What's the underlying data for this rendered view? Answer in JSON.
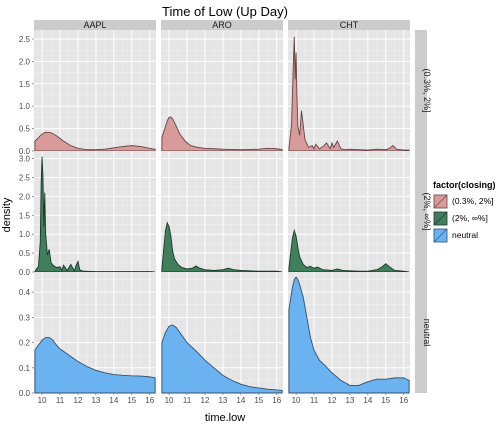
{
  "chart_data": {
    "type": "area",
    "title": "Time of Low (Up Day)",
    "xlabel": "time.low",
    "ylabel": "density",
    "x_ticks": [
      10,
      11,
      12,
      13,
      14,
      15,
      16
    ],
    "xlim": [
      9.55,
      16.35
    ],
    "columns": [
      "AAPL",
      "ARO",
      "CHT"
    ],
    "rows": [
      {
        "key": "r1",
        "label": "(0.3%, 2%]",
        "ylim": [
          0,
          2.7
        ],
        "y_ticks": [
          0,
          0.5,
          1.0,
          1.5,
          2.0,
          2.5
        ],
        "y_tick_labels": [
          "0.0",
          "0.5",
          "1.0",
          "1.5",
          "2.0",
          "2.5"
        ],
        "fill": "#d99a9a"
      },
      {
        "key": "r2",
        "label": "(2%, ∞%]",
        "ylim": [
          0,
          3.2
        ],
        "y_ticks": [
          0,
          0.5,
          1.0,
          1.5,
          2.0,
          2.5,
          3.0
        ],
        "y_tick_labels": [
          "0.0",
          "0.5",
          "1.0",
          "1.5",
          "2.0",
          "2.5",
          "3.0"
        ],
        "fill": "#3f7f5c"
      },
      {
        "key": "r3",
        "label": "neutral",
        "ylim": [
          0,
          0.48
        ],
        "y_ticks": [
          0,
          0.1,
          0.2,
          0.3,
          0.4
        ],
        "y_tick_labels": [
          "0.0",
          "0.1",
          "0.2",
          "0.3",
          "0.4"
        ],
        "fill": "#6bb2f0"
      }
    ],
    "legend": {
      "title": "factor(closing)",
      "position": "right",
      "entries": [
        {
          "label": "(0.3%, 2%]",
          "color": "#d99a9a"
        },
        {
          "label": "(2%, ∞%]",
          "color": "#3f7f5c"
        },
        {
          "label": "neutral",
          "color": "#6bb2f0"
        }
      ]
    },
    "grid": true,
    "panels": [
      {
        "row": "r1",
        "column": "AAPL",
        "x": [
          9.6,
          9.8,
          10.0,
          10.2,
          10.5,
          10.8,
          11.2,
          11.6,
          12.0,
          12.5,
          13.0,
          13.5,
          14.0,
          14.5,
          15.0,
          15.5,
          16.0,
          16.3
        ],
        "y": [
          0.22,
          0.3,
          0.38,
          0.42,
          0.41,
          0.34,
          0.22,
          0.12,
          0.06,
          0.03,
          0.03,
          0.04,
          0.07,
          0.1,
          0.12,
          0.1,
          0.06,
          0.04
        ]
      },
      {
        "row": "r1",
        "column": "ARO",
        "x": [
          9.6,
          9.8,
          9.9,
          10.0,
          10.1,
          10.2,
          10.4,
          10.6,
          10.9,
          11.2,
          11.6,
          12.0,
          12.5,
          13.0,
          14.0,
          15.0,
          15.5,
          16.0,
          16.3
        ],
        "y": [
          0.3,
          0.55,
          0.68,
          0.75,
          0.76,
          0.72,
          0.55,
          0.38,
          0.22,
          0.12,
          0.08,
          0.06,
          0.05,
          0.04,
          0.03,
          0.04,
          0.06,
          0.05,
          0.03
        ]
      },
      {
        "row": "r1",
        "column": "CHT",
        "x": [
          9.6,
          9.75,
          9.85,
          9.9,
          9.95,
          10.0,
          10.05,
          10.1,
          10.2,
          10.3,
          10.5,
          10.7,
          10.9,
          11.0,
          11.1,
          11.3,
          11.5,
          11.7,
          11.9,
          12.0,
          12.1,
          12.3,
          12.5,
          12.7,
          13.0,
          13.5,
          14.0,
          14.5,
          15.0,
          15.2,
          15.4,
          15.6,
          16.0,
          16.3
        ],
        "y": [
          0.05,
          0.6,
          2.0,
          2.55,
          1.6,
          2.2,
          1.2,
          0.55,
          0.35,
          0.9,
          0.25,
          0.08,
          0.12,
          0.05,
          0.15,
          0.05,
          0.1,
          0.18,
          0.05,
          0.18,
          0.08,
          0.22,
          0.05,
          0.03,
          0.04,
          0.03,
          0.02,
          0.04,
          0.03,
          0.06,
          0.12,
          0.04,
          0.02,
          0.02
        ]
      },
      {
        "row": "r2",
        "column": "AAPL",
        "x": [
          9.6,
          9.8,
          9.9,
          9.95,
          10.0,
          10.05,
          10.1,
          10.15,
          10.2,
          10.3,
          10.4,
          10.5,
          10.6,
          10.8,
          11.0,
          11.1,
          11.2,
          11.4,
          11.6,
          11.8,
          11.9,
          12.0,
          12.1,
          12.3,
          13.0,
          14.0,
          15.0,
          16.0,
          16.3
        ],
        "y": [
          0.02,
          0.15,
          0.8,
          2.4,
          3.05,
          2.5,
          1.2,
          2.1,
          1.0,
          0.45,
          0.6,
          0.25,
          0.18,
          0.12,
          0.14,
          0.05,
          0.18,
          0.04,
          0.2,
          0.03,
          0.18,
          0.28,
          0.06,
          0.02,
          0.01,
          0.01,
          0.01,
          0.01,
          0.0
        ]
      },
      {
        "row": "r2",
        "column": "ARO",
        "x": [
          9.6,
          9.7,
          9.8,
          9.9,
          10.0,
          10.1,
          10.2,
          10.3,
          10.5,
          10.7,
          11.0,
          11.3,
          11.5,
          11.7,
          12.0,
          12.5,
          13.0,
          13.3,
          13.6,
          14.0,
          15.0,
          16.0,
          16.3
        ],
        "y": [
          0.1,
          0.6,
          1.1,
          1.3,
          1.2,
          0.95,
          0.55,
          0.35,
          0.2,
          0.12,
          0.08,
          0.1,
          0.16,
          0.1,
          0.06,
          0.04,
          0.06,
          0.1,
          0.06,
          0.04,
          0.02,
          0.02,
          0.0
        ]
      },
      {
        "row": "r2",
        "column": "CHT",
        "x": [
          9.6,
          9.7,
          9.8,
          9.9,
          10.0,
          10.1,
          10.2,
          10.4,
          10.6,
          10.8,
          11.0,
          11.2,
          11.5,
          12.0,
          12.3,
          12.6,
          13.0,
          13.5,
          14.0,
          14.5,
          14.8,
          15.0,
          15.2,
          15.5,
          16.0,
          16.3
        ],
        "y": [
          0.1,
          0.5,
          0.9,
          1.1,
          0.95,
          0.65,
          0.4,
          0.2,
          0.12,
          0.15,
          0.1,
          0.13,
          0.06,
          0.04,
          0.08,
          0.04,
          0.03,
          0.02,
          0.02,
          0.06,
          0.14,
          0.22,
          0.14,
          0.04,
          0.02,
          0.0
        ]
      },
      {
        "row": "r3",
        "column": "AAPL",
        "x": [
          9.6,
          9.8,
          10.0,
          10.2,
          10.4,
          10.6,
          10.8,
          11.0,
          11.3,
          11.6,
          12.0,
          12.5,
          13.0,
          13.5,
          14.0,
          14.5,
          15.0,
          15.5,
          16.0,
          16.3
        ],
        "y": [
          0.17,
          0.19,
          0.21,
          0.22,
          0.22,
          0.21,
          0.19,
          0.175,
          0.16,
          0.145,
          0.125,
          0.105,
          0.09,
          0.08,
          0.073,
          0.07,
          0.068,
          0.067,
          0.064,
          0.06
        ]
      },
      {
        "row": "r3",
        "column": "ARO",
        "x": [
          9.6,
          9.8,
          10.0,
          10.2,
          10.4,
          10.6,
          10.8,
          11.0,
          11.3,
          11.6,
          12.0,
          12.5,
          13.0,
          13.5,
          14.0,
          14.5,
          15.0,
          15.5,
          16.0,
          16.3
        ],
        "y": [
          0.2,
          0.24,
          0.265,
          0.27,
          0.26,
          0.24,
          0.22,
          0.2,
          0.18,
          0.16,
          0.13,
          0.1,
          0.07,
          0.05,
          0.035,
          0.025,
          0.02,
          0.015,
          0.012,
          0.01
        ]
      },
      {
        "row": "r3",
        "column": "CHT",
        "x": [
          9.6,
          9.8,
          9.9,
          10.0,
          10.1,
          10.2,
          10.4,
          10.6,
          10.8,
          11.0,
          11.3,
          11.6,
          12.0,
          12.5,
          13.0,
          13.5,
          14.0,
          14.5,
          15.0,
          15.5,
          16.0,
          16.3
        ],
        "y": [
          0.33,
          0.42,
          0.45,
          0.46,
          0.45,
          0.43,
          0.38,
          0.3,
          0.22,
          0.17,
          0.13,
          0.11,
          0.08,
          0.05,
          0.03,
          0.03,
          0.045,
          0.055,
          0.055,
          0.06,
          0.06,
          0.05
        ]
      }
    ]
  }
}
